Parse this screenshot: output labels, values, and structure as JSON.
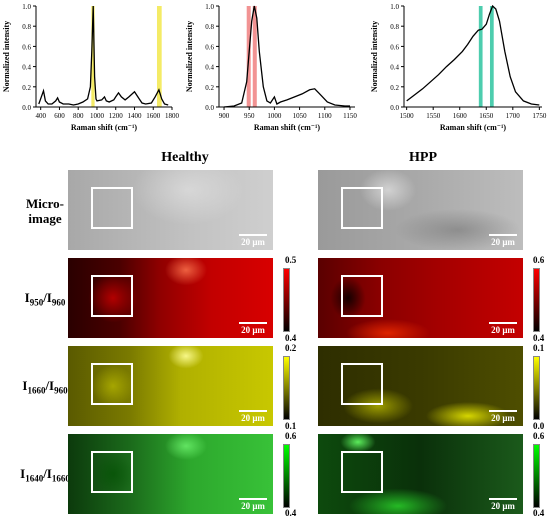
{
  "chart_data": [
    {
      "type": "line",
      "xlabel": "Raman shift (cm⁻¹)",
      "ylabel": "Normalized intensity",
      "xlim": [
        350,
        1800
      ],
      "ylim": [
        0,
        1.0
      ],
      "xticks": [
        "400",
        "600",
        "800",
        "1000",
        "1200",
        "1400",
        "1600",
        "1800"
      ],
      "yticks": [
        "0.0",
        "0.2",
        "0.4",
        "0.6",
        "0.8",
        "1.0"
      ],
      "highlight_color": "#f2e84b",
      "highlights": [
        [
          940,
          975
        ],
        [
          1640,
          1690
        ]
      ],
      "x": [
        380,
        430,
        450,
        480,
        520,
        560,
        580,
        600,
        640,
        700,
        750,
        800,
        850,
        900,
        930,
        945,
        960,
        975,
        990,
        1000,
        1050,
        1080,
        1100,
        1130,
        1180,
        1200,
        1230,
        1260,
        1300,
        1340,
        1400,
        1450,
        1480,
        1520,
        1580,
        1620,
        1660,
        1690,
        1720,
        1760
      ],
      "y": [
        0.03,
        0.16,
        0.06,
        0.03,
        0.03,
        0.06,
        0.09,
        0.05,
        0.03,
        0.03,
        0.02,
        0.03,
        0.05,
        0.08,
        0.2,
        0.55,
        1.0,
        0.3,
        0.08,
        0.06,
        0.07,
        0.1,
        0.06,
        0.05,
        0.07,
        0.1,
        0.14,
        0.1,
        0.07,
        0.1,
        0.15,
        0.08,
        0.04,
        0.03,
        0.04,
        0.1,
        0.17,
        0.08,
        0.03,
        0.02
      ]
    },
    {
      "type": "line",
      "xlabel": "Raman shift (cm⁻¹)",
      "ylabel": "Normalized intensity",
      "xlim": [
        890,
        1160
      ],
      "ylim": [
        0,
        1.0
      ],
      "xticks": [
        "900",
        "950",
        "1000",
        "1050",
        "1100",
        "1150"
      ],
      "yticks": [
        "0.0",
        "0.2",
        "0.4",
        "0.6",
        "0.8",
        "1.0"
      ],
      "highlight_color": "#f08080",
      "highlights": [
        [
          945,
          953
        ],
        [
          957,
          965
        ]
      ],
      "x": [
        900,
        920,
        935,
        945,
        950,
        955,
        960,
        965,
        970,
        978,
        985,
        992,
        1000,
        1005,
        1012,
        1025,
        1040,
        1055,
        1070,
        1080,
        1090,
        1105,
        1120,
        1140,
        1150
      ],
      "y": [
        0.0,
        0.01,
        0.04,
        0.25,
        0.55,
        0.85,
        1.0,
        0.88,
        0.55,
        0.2,
        0.06,
        0.04,
        0.1,
        0.03,
        0.05,
        0.07,
        0.1,
        0.13,
        0.17,
        0.18,
        0.13,
        0.05,
        0.02,
        0.01,
        0.01
      ]
    },
    {
      "type": "line",
      "xlabel": "Raman shift (cm⁻¹)",
      "ylabel": "Normalized intensity",
      "xlim": [
        1495,
        1755
      ],
      "ylim": [
        0,
        1.0
      ],
      "xticks": [
        "1500",
        "1550",
        "1600",
        "1650",
        "1700",
        "1750"
      ],
      "yticks": [
        "0.0",
        "0.2",
        "0.4",
        "0.6",
        "0.8",
        "1.0"
      ],
      "highlight_color": "#2ec4a0",
      "highlights": [
        [
          1636,
          1643
        ],
        [
          1657,
          1664
        ]
      ],
      "x": [
        1500,
        1515,
        1530,
        1545,
        1560,
        1575,
        1590,
        1605,
        1615,
        1625,
        1635,
        1642,
        1650,
        1656,
        1662,
        1668,
        1675,
        1685,
        1695,
        1705,
        1720,
        1735,
        1750
      ],
      "y": [
        0.06,
        0.12,
        0.18,
        0.25,
        0.32,
        0.4,
        0.47,
        0.55,
        0.62,
        0.7,
        0.76,
        0.77,
        0.82,
        0.92,
        1.0,
        0.97,
        0.85,
        0.55,
        0.3,
        0.15,
        0.06,
        0.03,
        0.02
      ]
    }
  ],
  "columns": [
    "Healthy",
    "HPP"
  ],
  "rows": [
    {
      "label": "Micro-",
      "label2": "image",
      "sub": "",
      "sub2": ""
    },
    {
      "label": "I",
      "sub": "950",
      "mid": "/I",
      "sub2": "960"
    },
    {
      "label": "I",
      "sub": "1660",
      "mid": "/I",
      "sub2": "960"
    },
    {
      "label": "I",
      "sub": "1640",
      "mid": "/I",
      "sub2": "1660"
    }
  ],
  "scale_bar": "20 μm",
  "colorbars": {
    "red": {
      "healthy": {
        "max": "0.5",
        "min": "0.4"
      },
      "hpp": {
        "max": "0.6",
        "min": "0.4"
      },
      "color": "#ff0000"
    },
    "yellow": {
      "healthy": {
        "max": "0.2",
        "min": "0.1"
      },
      "hpp": {
        "max": "0.1",
        "min": "0.0"
      },
      "color": "#ffff00"
    },
    "green": {
      "healthy": {
        "max": "0.6",
        "min": "0.4"
      },
      "hpp": {
        "max": "0.6",
        "min": "0.4"
      },
      "color": "#00ff00"
    }
  }
}
